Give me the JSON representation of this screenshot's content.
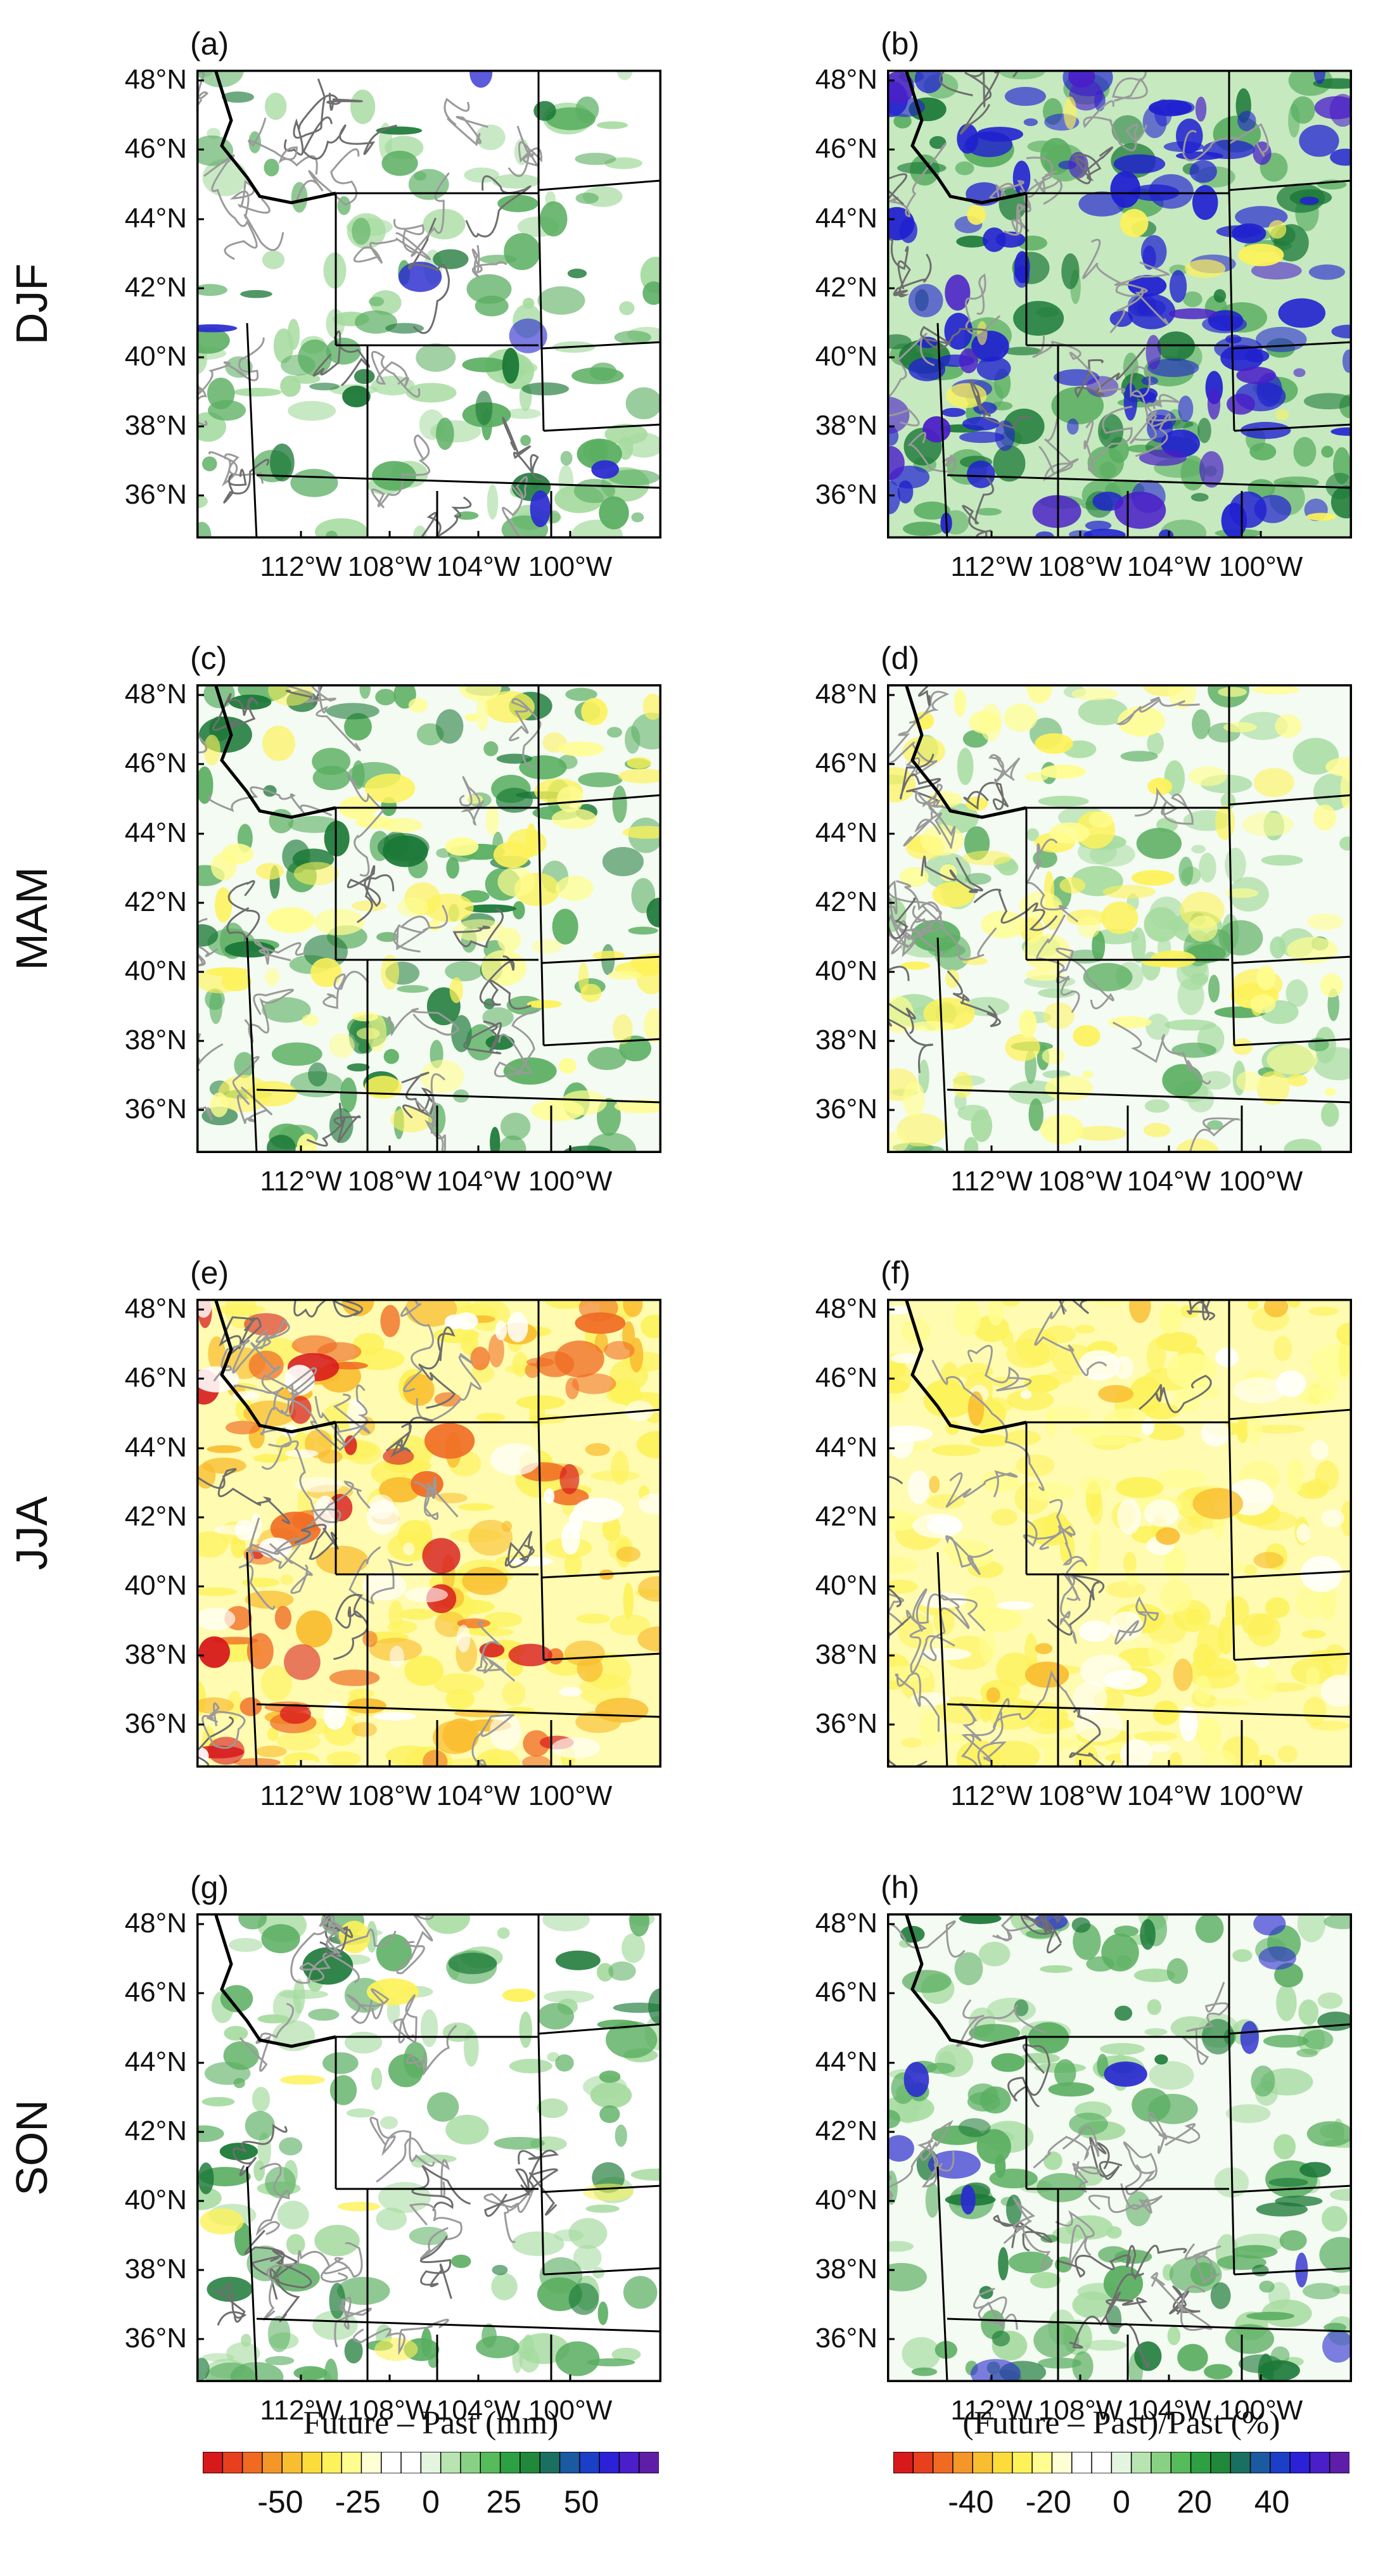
{
  "panels": [
    {
      "label": "(a)",
      "row": 0,
      "col": 0
    },
    {
      "label": "(b)",
      "row": 0,
      "col": 1
    },
    {
      "label": "(c)",
      "row": 1,
      "col": 0
    },
    {
      "label": "(d)",
      "row": 1,
      "col": 1
    },
    {
      "label": "(e)",
      "row": 2,
      "col": 0
    },
    {
      "label": "(f)",
      "row": 2,
      "col": 1
    },
    {
      "label": "(g)",
      "row": 3,
      "col": 0
    },
    {
      "label": "(h)",
      "row": 3,
      "col": 1
    }
  ],
  "seasons": [
    "DJF",
    "MAM",
    "JJA",
    "SON"
  ],
  "lat_labels": [
    "48°N",
    "46°N",
    "44°N",
    "42°N",
    "40°N",
    "38°N",
    "36°N"
  ],
  "lon_labels": [
    "112°W",
    "108°W",
    "104°W",
    "100°W"
  ],
  "colorbar_left": {
    "title": "Future – Past (mm)",
    "ticks": [
      "-50",
      "-25",
      "0",
      "25",
      "50"
    ],
    "colors": [
      "#d7191c",
      "#e8401f",
      "#f06a22",
      "#f59628",
      "#f9bd30",
      "#fcdc3a",
      "#fdf25a",
      "#fffd90",
      "#ffffd6",
      "#ffffff",
      "#ffffff",
      "#e3f5df",
      "#b7e4b0",
      "#88d184",
      "#56bb5a",
      "#2ea044",
      "#20883a",
      "#1a7060",
      "#1a5aa0",
      "#1c3fc8",
      "#2b22d8",
      "#4a1ec8",
      "#5e1ea8"
    ]
  },
  "colorbar_right": {
    "title": "(Future – Past)/Past (%)",
    "ticks": [
      "-40",
      "-20",
      "0",
      "20",
      "40"
    ],
    "colors": [
      "#d7191c",
      "#e8401f",
      "#f06a22",
      "#f59628",
      "#f9bd30",
      "#fcdc3a",
      "#fdf25a",
      "#fffd90",
      "#ffffd6",
      "#ffffff",
      "#ffffff",
      "#e3f5df",
      "#b7e4b0",
      "#88d184",
      "#56bb5a",
      "#2ea044",
      "#20883a",
      "#1a7060",
      "#1a5aa0",
      "#1c3fc8",
      "#2b22d8",
      "#4a1ec8",
      "#5e1ea8"
    ]
  }
}
